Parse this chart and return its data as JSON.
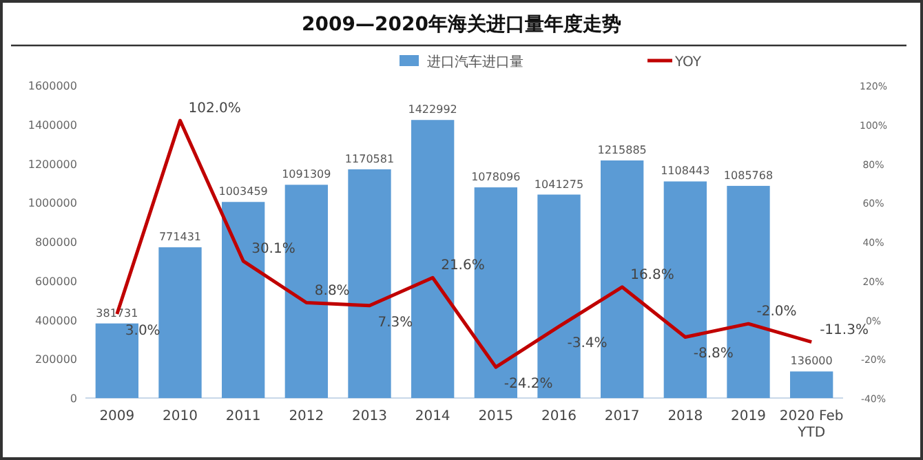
{
  "chart_data": {
    "type": "bar",
    "title": "2009—2020年海关进口量年度走势",
    "categories": [
      "2009",
      "2010",
      "2011",
      "2012",
      "2013",
      "2014",
      "2015",
      "2016",
      "2017",
      "2018",
      "2019",
      "2020 Feb YTD"
    ],
    "series": [
      {
        "name": "进口汽车进口量",
        "color": "#5b9bd5",
        "values": [
          381731,
          771431,
          1003459,
          1091309,
          1170581,
          1422992,
          1078096,
          1041275,
          1215885,
          1108443,
          1085768,
          136000
        ]
      },
      {
        "name": "YOY",
        "type": "line",
        "axis": "y2",
        "color": "#c00000",
        "values": [
          3.0,
          102.0,
          30.1,
          8.8,
          7.3,
          21.6,
          -24.2,
          -3.4,
          16.8,
          -8.8,
          -2.0,
          -11.3
        ],
        "value_labels": [
          "3.0%",
          "102.0%",
          "30.1%",
          "8.8%",
          "7.3%",
          "21.6%",
          "-24.2%",
          "-3.4%",
          "16.8%",
          "-8.8%",
          "-2.0%",
          "-11.3%"
        ]
      }
    ],
    "ylim": [
      0,
      1600000
    ],
    "yticks": [
      0,
      200000,
      400000,
      600000,
      800000,
      1000000,
      1200000,
      1400000,
      1600000
    ],
    "y2lim": [
      -40,
      120
    ],
    "y2ticks": [
      {
        "value": -40,
        "label": "-40%"
      },
      {
        "value": -20,
        "label": "-20%"
      },
      {
        "value": 0,
        "label": "0%"
      },
      {
        "value": 20,
        "label": "20%"
      },
      {
        "value": 40,
        "label": "40%"
      },
      {
        "value": 60,
        "label": "60%"
      },
      {
        "value": 80,
        "label": "80%"
      },
      {
        "value": 100,
        "label": "100%"
      },
      {
        "value": 120,
        "label": "120%"
      }
    ],
    "data_labels": true,
    "legend": "top",
    "grid": false,
    "marker": "none",
    "line_style": "solid"
  }
}
